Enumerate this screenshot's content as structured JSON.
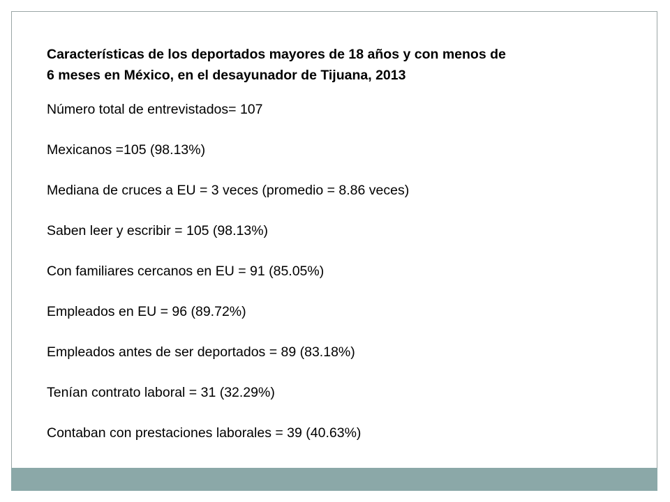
{
  "slide": {
    "title_line1": "Características de los deportados mayores de 18 años y con menos de",
    "title_line2": "6 meses en México, en el desayunador de Tijuana, 2013",
    "stats": [
      "Número total de entrevistados= 107",
      "Mexicanos =105 (98.13%)",
      "Mediana de cruces a EU = 3 veces (promedio = 8.86 veces)",
      "Saben leer y escribir = 105 (98.13%)",
      "Con familiares cercanos en EU = 91 (85.05%)",
      "Empleados en EU = 96 (89.72%)",
      "Empleados antes de ser deportados = 89 (83.18%)",
      "Tenían contrato laboral = 31 (32.29%)",
      "Contaban con prestaciones laborales = 39 (40.63%)"
    ]
  },
  "colors": {
    "frame_border": "#9aa5a5",
    "footer_band": "#8ba8a8",
    "text": "#000000",
    "background": "#ffffff"
  }
}
